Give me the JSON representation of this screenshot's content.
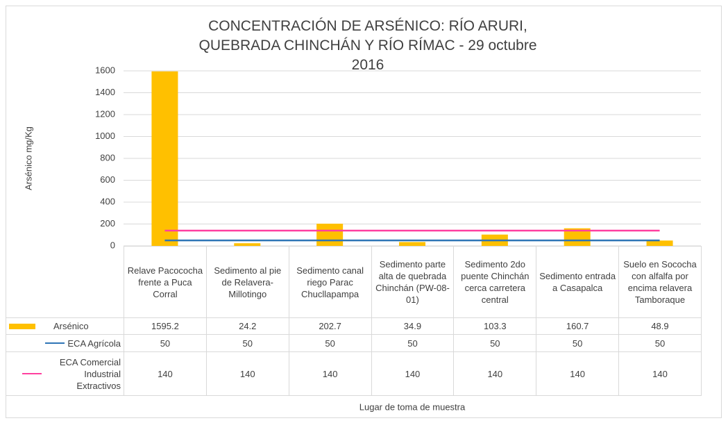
{
  "chart_data": {
    "type": "bar",
    "title": "CONCENTRACIÓN DE ARSÉNICO: RÍO ARURI, QUEBRADA CHINCHÁN Y RÍO RÍMAC - 29 octubre 2016",
    "y_axis_label": "Arsénico mg/Kg",
    "x_axis_label": "Lugar de toma de muestra",
    "categories": [
      "Relave Pacococha frente a Puca Corral",
      "Sedimento al pie de Relavera-Millotingo",
      "Sedimento canal riego Parac Chucllapampa",
      "Sedimento parte alta de quebrada Chinchán (PW-08-01)",
      "Sedimento 2do puente Chinchán cerca carretera central",
      "Sedimento entrada a Casapalca",
      "Suelo en Sococha con alfalfa por encima relavera Tamboraque"
    ],
    "series": [
      {
        "name": "Arsénico",
        "type": "bar",
        "color": "#ffc000",
        "values": [
          1595.2,
          24.2,
          202.7,
          34.9,
          103.3,
          160.7,
          48.9
        ]
      },
      {
        "name": "ECA Agrícola",
        "type": "line",
        "color": "#2e75b6",
        "values": [
          50,
          50,
          50,
          50,
          50,
          50,
          50
        ]
      },
      {
        "name": "ECA Comercial Industrial Extractivos",
        "type": "line",
        "color": "#ff3f9f",
        "values": [
          140,
          140,
          140,
          140,
          140,
          140,
          140
        ]
      }
    ],
    "ylim": [
      0,
      1600
    ],
    "yticks": [
      0,
      200,
      400,
      600,
      800,
      1000,
      1200,
      1400,
      1600
    ],
    "grid": true,
    "data_table": true
  }
}
